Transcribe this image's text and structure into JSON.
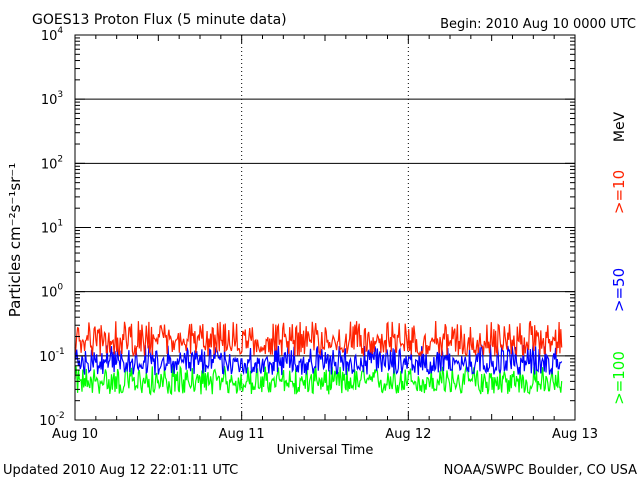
{
  "chart_data": {
    "type": "line",
    "title": "GOES13 Proton Flux (5 minute data)",
    "begin_label": "Begin: 2010 Aug 10 0000 UTC",
    "xlabel": "Universal Time",
    "ylabel": "Particles cm⁻²s⁻¹sr⁻¹",
    "footer_left": "Updated 2010 Aug 12 22:01:11 UTC",
    "footer_right": "NOAA/SWPC Boulder, CO USA",
    "unit_label": "MeV",
    "x_ticks": [
      "Aug 10",
      "Aug 11",
      "Aug 12",
      "Aug 13"
    ],
    "x_range_days": [
      0,
      3
    ],
    "data_end_day": 2.92,
    "y_scale": "log",
    "ylim": [
      0.01,
      10000
    ],
    "y_ticks": [
      {
        "base": "10",
        "exp": "-2"
      },
      {
        "base": "10",
        "exp": "-1"
      },
      {
        "base": "10",
        "exp": "0"
      },
      {
        "base": "10",
        "exp": "1"
      },
      {
        "base": "10",
        "exp": "2"
      },
      {
        "base": "10",
        "exp": "3"
      },
      {
        "base": "10",
        "exp": "4"
      }
    ],
    "threshold_lines": [
      {
        "value": 0.1,
        "style": "solid"
      },
      {
        "value": 1,
        "style": "solid"
      },
      {
        "value": 10,
        "style": "dashed"
      },
      {
        "value": 100,
        "style": "solid"
      },
      {
        "value": 1000,
        "style": "solid"
      }
    ],
    "series": [
      {
        "name": ">=10",
        "color": "#ff2200",
        "baseline": 0.17,
        "spread_low": 0.1,
        "spread_high": 0.35
      },
      {
        "name": ">=50",
        "color": "#0000ff",
        "baseline": 0.08,
        "spread_low": 0.05,
        "spread_high": 0.15
      },
      {
        "name": ">=100",
        "color": "#00ff00",
        "baseline": 0.04,
        "spread_low": 0.025,
        "spread_high": 0.07
      }
    ]
  }
}
